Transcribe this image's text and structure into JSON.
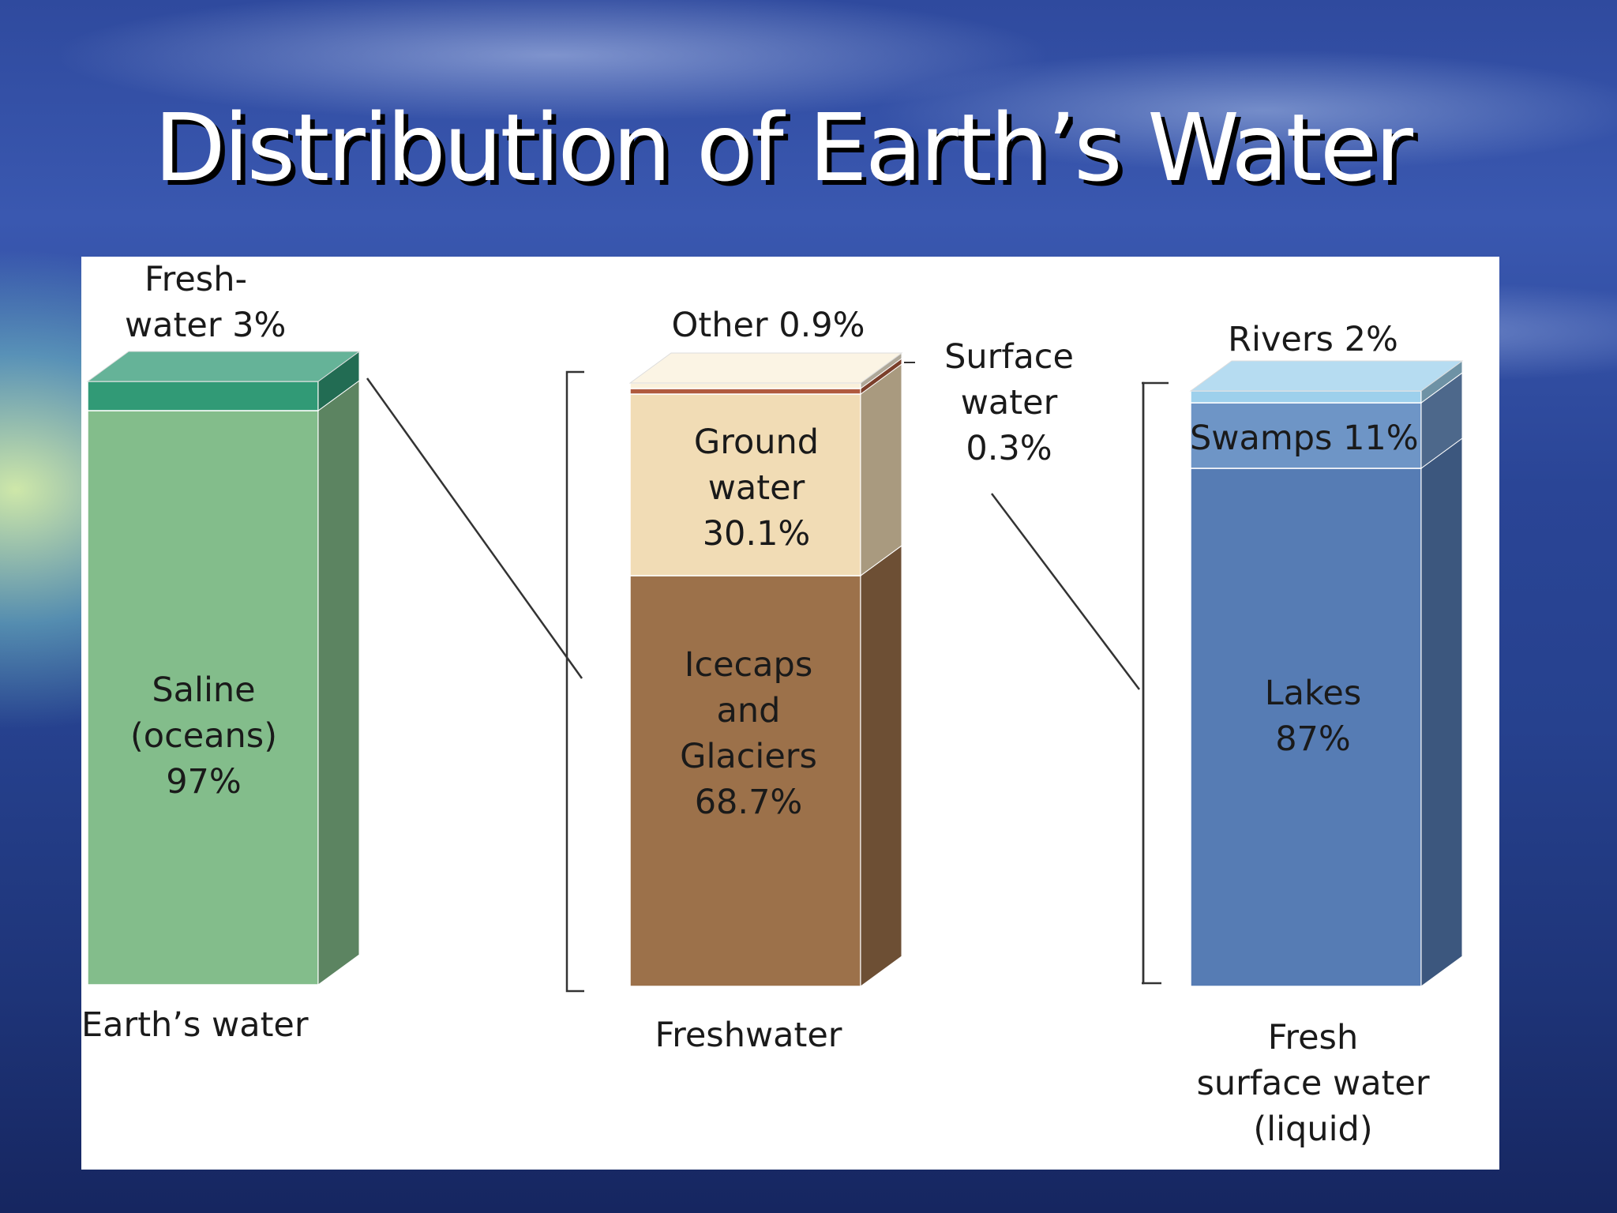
{
  "slide": {
    "title": "Distribution of Earth’s Water"
  },
  "chart_data": [
    {
      "type": "bar",
      "stacked": true,
      "title": "",
      "xlabel": "Earth’s water",
      "categories": [
        "Earth’s water"
      ],
      "series": [
        {
          "name": "Saline (oceans)",
          "value": 97,
          "label_lines": [
            "Saline",
            "(oceans)",
            "97%"
          ],
          "color": "#83bd8b"
        },
        {
          "name": "Freshwater",
          "value": 3,
          "label_lines": [
            "Fresh-",
            "water 3%"
          ],
          "color": "#319a76"
        }
      ]
    },
    {
      "type": "bar",
      "stacked": true,
      "title": "",
      "xlabel": "Freshwater",
      "categories": [
        "Freshwater"
      ],
      "series": [
        {
          "name": "Icecaps and Glaciers",
          "value": 68.7,
          "label_lines": [
            "Icecaps",
            "and",
            "Glaciers",
            "68.7%"
          ],
          "color": "#9c714a"
        },
        {
          "name": "Ground water",
          "value": 30.1,
          "label_lines": [
            "Ground",
            "water",
            "30.1%"
          ],
          "color": "#f1dcb5"
        },
        {
          "name": "Surface water",
          "value": 0.3,
          "label_lines": [
            "Surface",
            "water",
            "0.3%"
          ],
          "color": "#b05a3e"
        },
        {
          "name": "Other",
          "value": 0.9,
          "label_lines": [
            "Other 0.9%"
          ],
          "color": "#faf0db"
        }
      ]
    },
    {
      "type": "bar",
      "stacked": true,
      "title": "",
      "xlabel_lines": [
        "Fresh",
        "surface water",
        "(liquid)"
      ],
      "categories": [
        "Fresh surface water (liquid)"
      ],
      "series": [
        {
          "name": "Lakes",
          "value": 87,
          "label_lines": [
            "Lakes",
            "87%"
          ],
          "color": "#567cb4"
        },
        {
          "name": "Swamps",
          "value": 11,
          "label_lines": [
            "Swamps 11%"
          ],
          "color": "#6e95c6"
        },
        {
          "name": "Rivers",
          "value": 2,
          "label_lines": [
            "Rivers 2%"
          ],
          "color": "#9dd0ec"
        }
      ]
    }
  ]
}
